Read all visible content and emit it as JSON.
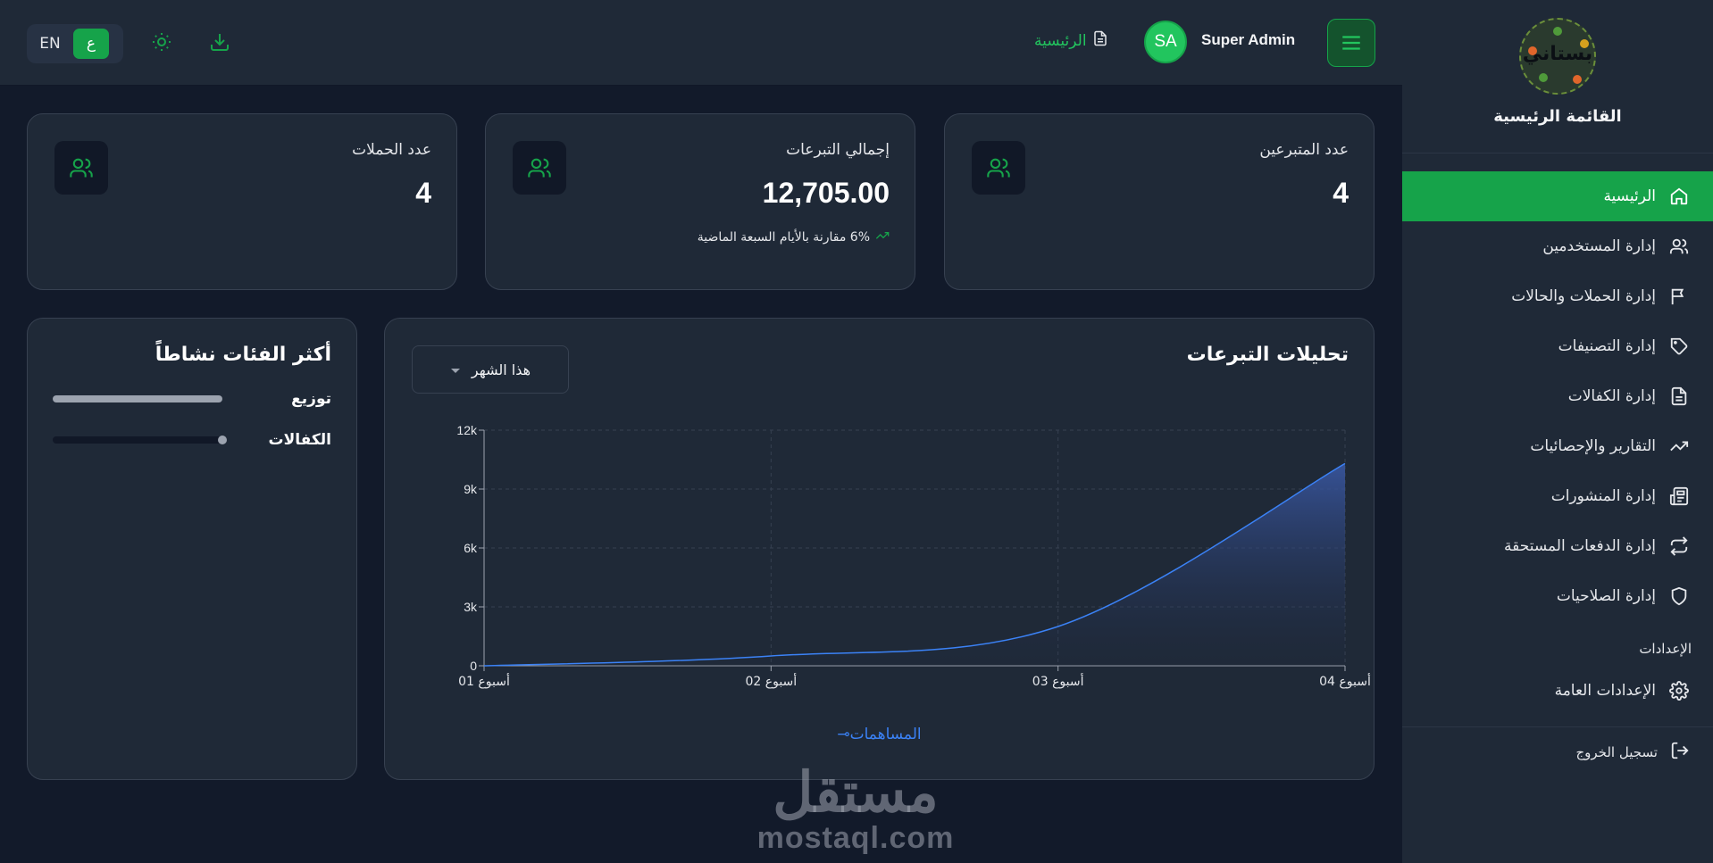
{
  "sidebar": {
    "logo_text": "بستاني",
    "title": "القائمة الرئيسية",
    "items": [
      {
        "label": "الرئيسية",
        "icon": "home-icon",
        "active": true
      },
      {
        "label": "إدارة المستخدمين",
        "icon": "users-icon"
      },
      {
        "label": "إدارة الحملات والحالات",
        "icon": "flag-icon"
      },
      {
        "label": "إدارة التصنيفات",
        "icon": "tag-icon"
      },
      {
        "label": "إدارة الكفالات",
        "icon": "document-icon"
      },
      {
        "label": "التقارير والإحصائيات",
        "icon": "trending-up-icon"
      },
      {
        "label": "إدارة المنشورات",
        "icon": "newspaper-icon"
      },
      {
        "label": "إدارة الدفعات المستحقة",
        "icon": "repeat-icon"
      },
      {
        "label": "إدارة الصلاحيات",
        "icon": "shield-icon"
      }
    ],
    "settings_section": "الإعدادات",
    "settings_item": "الإعدادات العامة",
    "logout": "تسجيل الخروج"
  },
  "header": {
    "lang_en": "EN",
    "lang_ar": "ع",
    "user_name": "Super Admin",
    "avatar_initials": "SA",
    "home_link": "الرئيسية"
  },
  "stats": [
    {
      "title": "عدد المتبرعين",
      "value": "4"
    },
    {
      "title": "إجمالي التبرعات",
      "value": "12,705.00",
      "note": "6% مقارنة بالأيام السبعة الماضية"
    },
    {
      "title": "عدد الحملات",
      "value": "4"
    }
  ],
  "analytics": {
    "title": "تحليلات التبرعات",
    "period": "هذا الشهر",
    "legend": "المساهمات"
  },
  "categories": {
    "title": "أكثر الفئات نشاطاً",
    "items": [
      {
        "label": "توزيع",
        "level": 1.0
      },
      {
        "label": "الكفالات",
        "level": 0.0
      }
    ]
  },
  "chart_data": {
    "type": "area",
    "categories": [
      "أسبوع 01",
      "أسبوع 02",
      "أسبوع 03",
      "أسبوع 04"
    ],
    "series": [
      {
        "name": "المساهمات",
        "values": [
          0,
          500,
          2000,
          10300
        ]
      }
    ],
    "yticks": [
      "0",
      "3k",
      "6k",
      "9k",
      "12k"
    ],
    "ylim": [
      0,
      12000
    ],
    "grid": true,
    "legend": "bottom",
    "color": "#3b82f6"
  },
  "colors": {
    "accent": "#16a34a",
    "line": "#3b82f6"
  },
  "watermark": {
    "ar": "مستقل",
    "latin": "mostaql.com"
  }
}
